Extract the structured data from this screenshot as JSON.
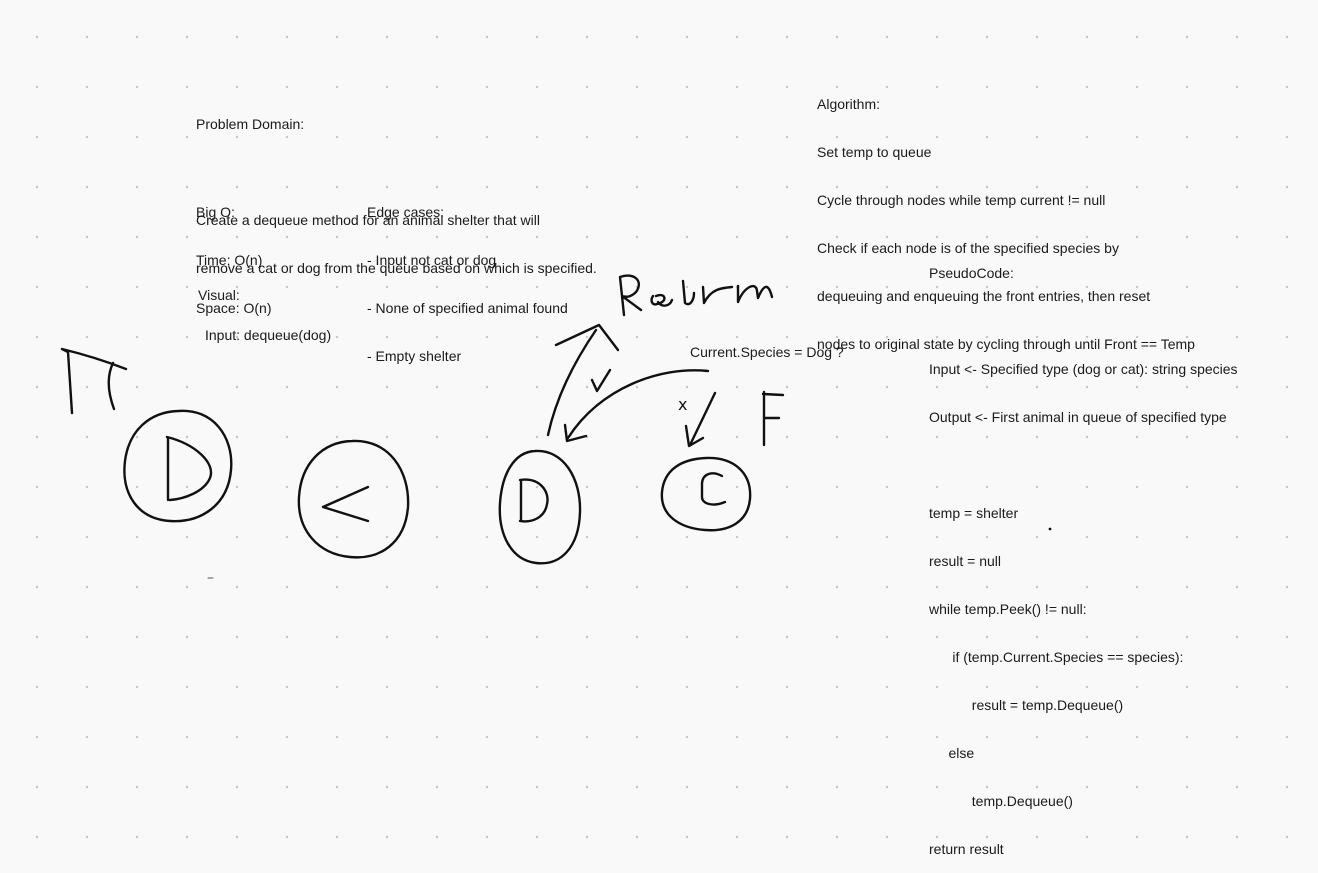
{
  "problem": {
    "heading": "Problem Domain:",
    "line1": "Create a dequeue method for an animal shelter that will",
    "line2": "remove a cat or dog from the queue based on which is specified."
  },
  "big_o": {
    "heading": "Big O:",
    "time": "Time: O(n)",
    "space": "Space: O(n)"
  },
  "edge_cases": {
    "heading": "Edge cases:",
    "items": [
      "- Input not cat or dog",
      "- None of specified animal found",
      "- Empty shelter"
    ]
  },
  "algorithm": {
    "heading": "Algorithm:",
    "lines": [
      "Set temp to queue",
      "Cycle through nodes while temp current != null",
      "Check if each node is of the specified species by",
      "dequeuing and enqueuing the front entries, then reset",
      "nodes to original state by cycling through until Front == Temp"
    ]
  },
  "pseudocode": {
    "heading": "PseudoCode:",
    "input": "Input <- Specified type (dog or cat): string species",
    "output": "Output <- First animal in queue of specified type",
    "code": [
      "temp = shelter",
      "result = null",
      "while temp.Peek() != null:",
      "      if (temp.Current.Species == species):",
      "           result = temp.Dequeue()",
      "     else",
      "           temp.Dequeue()",
      "return result"
    ]
  },
  "visual": {
    "heading": "Visual:",
    "input": "Input: dequeue(dog)",
    "condition": "Current.Species = Dog ?",
    "handwritten": {
      "return_word": "Return",
      "false_mark": "F",
      "x_mark": "x",
      "nodes": [
        "D",
        "C",
        "D",
        "C"
      ]
    }
  }
}
